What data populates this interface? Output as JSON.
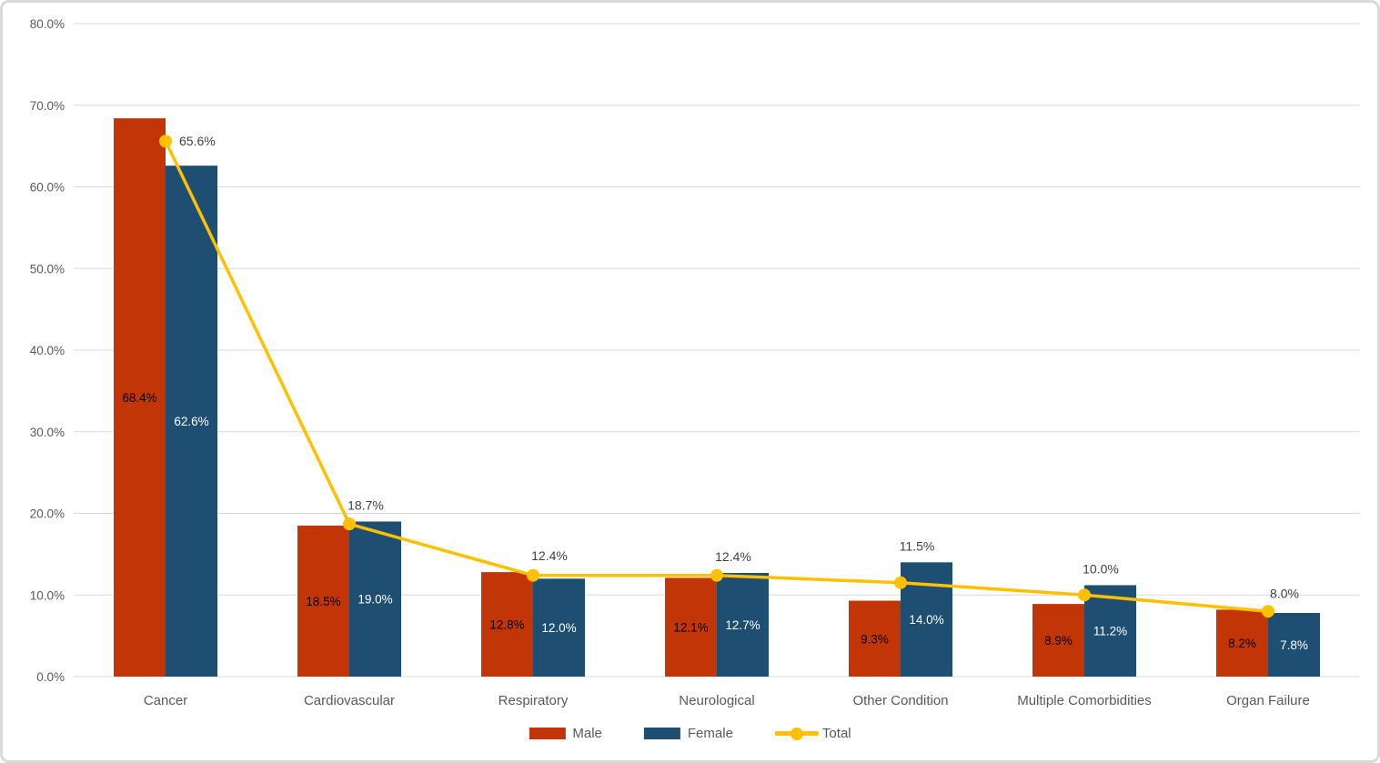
{
  "chart_data": {
    "type": "combo_bar_line",
    "title": "",
    "categories": [
      "Cancer",
      "Cardiovascular",
      "Respiratory",
      "Neurological",
      "Other Condition",
      "Multiple Comorbidities",
      "Organ Failure"
    ],
    "series": [
      {
        "name": "Male",
        "type": "bar",
        "color": "#C23506",
        "label_color": "#000000",
        "values": [
          68.4,
          18.5,
          12.8,
          12.1,
          9.3,
          8.9,
          8.2
        ],
        "labels": [
          "68.4%",
          "18.5%",
          "12.8%",
          "12.1%",
          "9.3%",
          "8.9%",
          "8.2%"
        ]
      },
      {
        "name": "Female",
        "type": "bar",
        "color": "#1F4E73",
        "label_color": "#FFFFFF",
        "values": [
          62.6,
          19.0,
          12.0,
          12.7,
          14.0,
          11.2,
          7.8
        ],
        "labels": [
          "62.6%",
          "19.0%",
          "12.0%",
          "12.7%",
          "14.0%",
          "11.2%",
          "7.8%"
        ]
      },
      {
        "name": "Total",
        "type": "line",
        "color": "#FFC000",
        "label_color": "#404040",
        "values": [
          65.6,
          18.7,
          12.4,
          12.4,
          11.5,
          10.0,
          8.0
        ],
        "labels": [
          "65.6%",
          "18.7%",
          "12.4%",
          "12.4%",
          "11.5%",
          "10.0%",
          "8.0%"
        ]
      }
    ],
    "y_axis": {
      "min": 0,
      "max": 80,
      "step": 10,
      "ticks": [
        "0.0%",
        "10.0%",
        "20.0%",
        "30.0%",
        "40.0%",
        "50.0%",
        "60.0%",
        "70.0%",
        "80.0%"
      ]
    },
    "xlabel": "",
    "ylabel": "",
    "grid": true,
    "legend": {
      "position": "bottom",
      "entries": [
        "Male",
        "Female",
        "Total"
      ]
    },
    "colors": {
      "gridline": "#D9D9D9",
      "axis_text": "#595959",
      "border": "#D9D9D9",
      "background": "#FFFFFF"
    }
  }
}
